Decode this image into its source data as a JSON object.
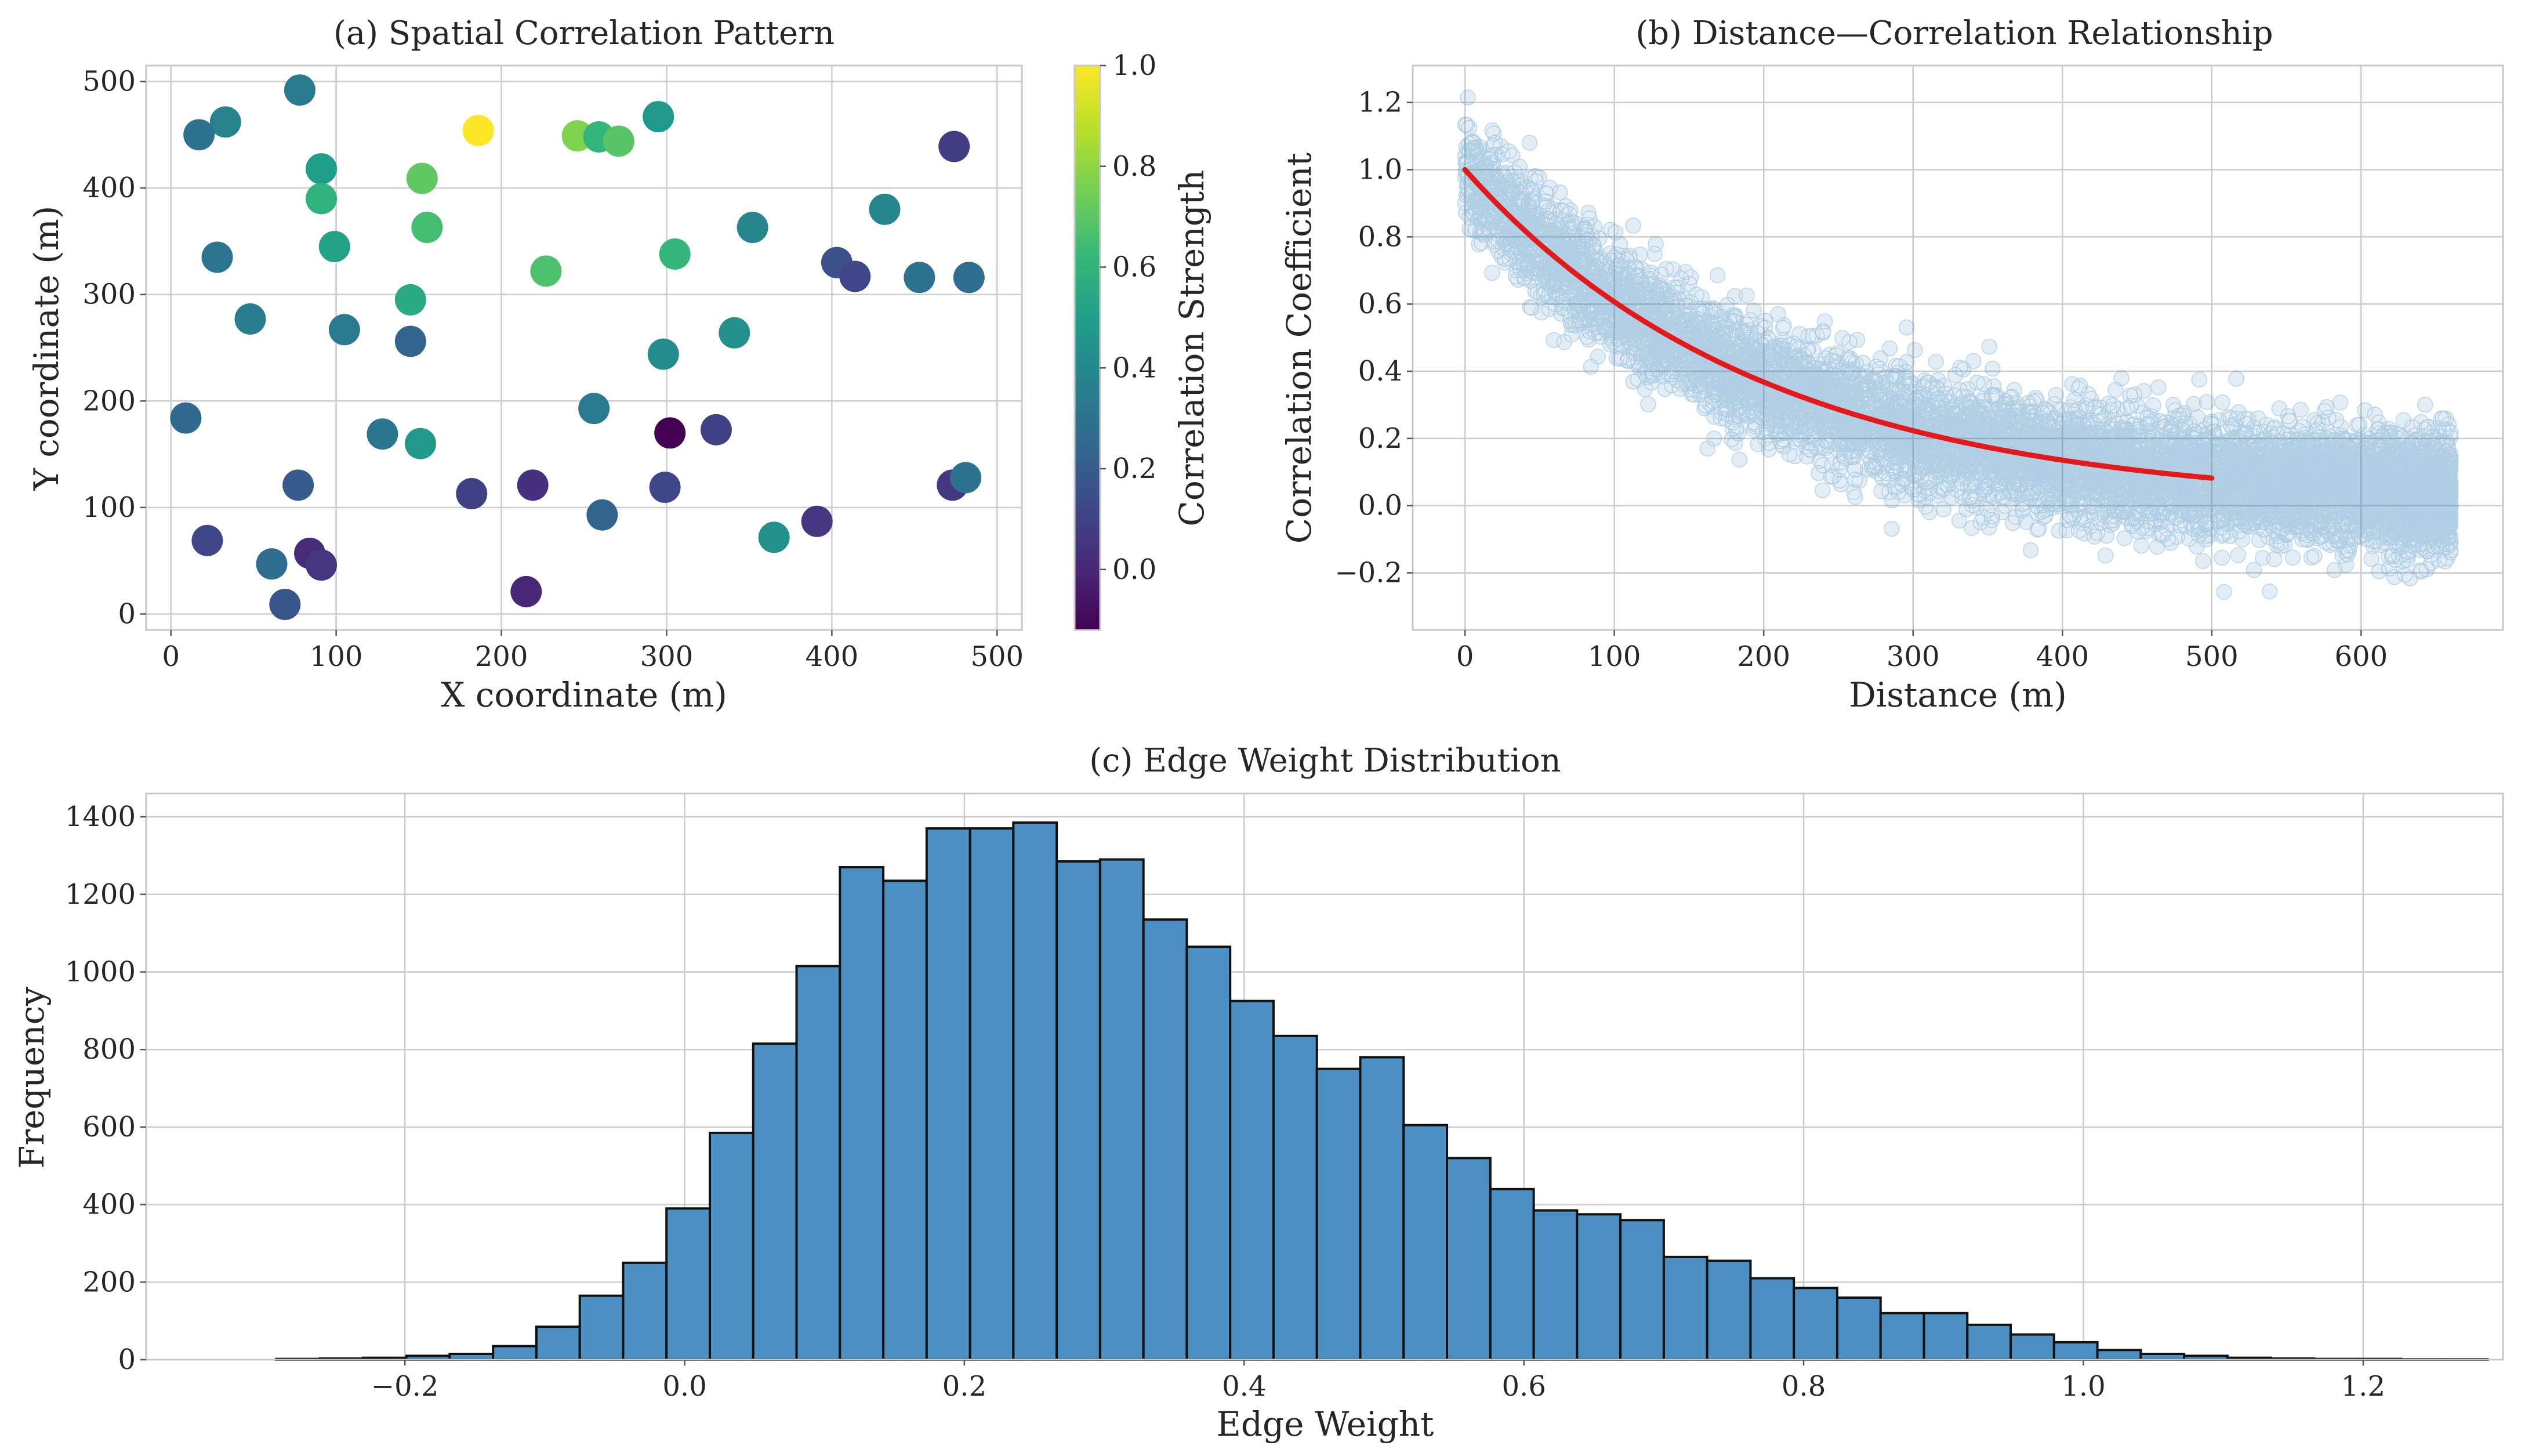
{
  "colors": {
    "accent": "#1f77b4",
    "fit_line": "#e31a1c",
    "hist_bar": "#4c8fc2",
    "hist_edge": "#111111",
    "viridis": [
      "#440154",
      "#482878",
      "#3e4989",
      "#31688e",
      "#26828e",
      "#1f9e89",
      "#35b779",
      "#6ece58",
      "#b5de2b",
      "#fde725"
    ]
  },
  "chart_data": [
    {
      "id": "a",
      "type": "scatter",
      "title": "(a) Spatial Correlation Pattern",
      "xlabel": "X coordinate (m)",
      "ylabel": "Y coordinate (m)",
      "xlim": [
        -15,
        515
      ],
      "ylim": [
        -15,
        515
      ],
      "xticks": [
        0,
        100,
        200,
        300,
        400,
        500
      ],
      "yticks": [
        0,
        100,
        200,
        300,
        400,
        500
      ],
      "grid": true,
      "colormap": "viridis",
      "colorbar": {
        "label": "Correlation Strength",
        "range": [
          -0.12,
          1.0
        ],
        "ticks": [
          0.0,
          0.2,
          0.4,
          0.6,
          0.8,
          1.0
        ],
        "tick_labels": [
          "0.0",
          "0.2",
          "0.4",
          "0.6",
          "0.8",
          "1.0"
        ]
      },
      "points": [
        {
          "x": 78,
          "y": 492,
          "c": 0.34
        },
        {
          "x": 33,
          "y": 462,
          "c": 0.38
        },
        {
          "x": 17,
          "y": 450,
          "c": 0.3
        },
        {
          "x": 186,
          "y": 454,
          "c": 1.0
        },
        {
          "x": 246,
          "y": 449,
          "c": 0.78
        },
        {
          "x": 259,
          "y": 448,
          "c": 0.62
        },
        {
          "x": 271,
          "y": 444,
          "c": 0.7
        },
        {
          "x": 295,
          "y": 467,
          "c": 0.48
        },
        {
          "x": 474,
          "y": 439,
          "c": 0.08
        },
        {
          "x": 91,
          "y": 418,
          "c": 0.5
        },
        {
          "x": 91,
          "y": 390,
          "c": 0.6
        },
        {
          "x": 152,
          "y": 409,
          "c": 0.72
        },
        {
          "x": 432,
          "y": 380,
          "c": 0.4
        },
        {
          "x": 99,
          "y": 345,
          "c": 0.52
        },
        {
          "x": 155,
          "y": 363,
          "c": 0.66
        },
        {
          "x": 352,
          "y": 363,
          "c": 0.4
        },
        {
          "x": 28,
          "y": 335,
          "c": 0.32
        },
        {
          "x": 227,
          "y": 322,
          "c": 0.68
        },
        {
          "x": 305,
          "y": 338,
          "c": 0.62
        },
        {
          "x": 403,
          "y": 330,
          "c": 0.16
        },
        {
          "x": 414,
          "y": 317,
          "c": 0.12
        },
        {
          "x": 453,
          "y": 316,
          "c": 0.3
        },
        {
          "x": 483,
          "y": 316,
          "c": 0.28
        },
        {
          "x": 48,
          "y": 277,
          "c": 0.36
        },
        {
          "x": 145,
          "y": 295,
          "c": 0.56
        },
        {
          "x": 105,
          "y": 267,
          "c": 0.34
        },
        {
          "x": 145,
          "y": 256,
          "c": 0.24
        },
        {
          "x": 298,
          "y": 244,
          "c": 0.42
        },
        {
          "x": 341,
          "y": 264,
          "c": 0.44
        },
        {
          "x": 9,
          "y": 184,
          "c": 0.26
        },
        {
          "x": 256,
          "y": 193,
          "c": 0.34
        },
        {
          "x": 128,
          "y": 169,
          "c": 0.32
        },
        {
          "x": 151,
          "y": 160,
          "c": 0.48
        },
        {
          "x": 302,
          "y": 170,
          "c": -0.12
        },
        {
          "x": 330,
          "y": 173,
          "c": 0.1
        },
        {
          "x": 77,
          "y": 121,
          "c": 0.2
        },
        {
          "x": 182,
          "y": 113,
          "c": 0.1
        },
        {
          "x": 219,
          "y": 121,
          "c": 0.04
        },
        {
          "x": 261,
          "y": 93,
          "c": 0.24
        },
        {
          "x": 299,
          "y": 119,
          "c": 0.12
        },
        {
          "x": 365,
          "y": 72,
          "c": 0.44
        },
        {
          "x": 391,
          "y": 87,
          "c": 0.06
        },
        {
          "x": 473,
          "y": 121,
          "c": 0.06
        },
        {
          "x": 481,
          "y": 128,
          "c": 0.3
        },
        {
          "x": 22,
          "y": 69,
          "c": 0.12
        },
        {
          "x": 61,
          "y": 47,
          "c": 0.28
        },
        {
          "x": 84,
          "y": 57,
          "c": 0.02
        },
        {
          "x": 91,
          "y": 46,
          "c": 0.06
        },
        {
          "x": 69,
          "y": 9,
          "c": 0.18
        },
        {
          "x": 215,
          "y": 21,
          "c": 0.0
        }
      ]
    },
    {
      "id": "b",
      "type": "scatter",
      "title": "(b) Distance—Correlation Relationship",
      "xlabel": "Distance (m)",
      "ylabel": "Correlation Coefficient",
      "xlim": [
        -35,
        695
      ],
      "ylim": [
        -0.37,
        1.31
      ],
      "xticks": [
        0,
        100,
        200,
        300,
        400,
        500,
        600
      ],
      "yticks": [
        -0.2,
        0.0,
        0.2,
        0.4,
        0.6,
        0.8,
        1.0,
        1.2
      ],
      "ytick_labels": [
        "−0.2",
        "0.0",
        "0.2",
        "0.4",
        "0.6",
        "0.8",
        "1.0",
        "1.2"
      ],
      "grid": true,
      "scatter_cloud": {
        "n_points": 22000,
        "x_range": [
          0,
          660
        ],
        "model": "exp(-d/200)",
        "noise_sd": 0.08,
        "alpha": 0.15
      },
      "fit_line": {
        "model": "exp(-d/200)",
        "x": [
          0,
          50,
          100,
          150,
          200,
          250,
          300,
          350,
          400,
          450,
          500
        ],
        "y": [
          1.0,
          0.779,
          0.607,
          0.472,
          0.368,
          0.287,
          0.223,
          0.174,
          0.135,
          0.105,
          0.082
        ]
      }
    },
    {
      "id": "c",
      "type": "bar",
      "title": "(c) Edge Weight Distribution",
      "xlabel": "Edge Weight",
      "ylabel": "Frequency",
      "xlim": [
        -0.385,
        1.3
      ],
      "ylim": [
        0,
        1460
      ],
      "xticks": [
        -0.2,
        0.0,
        0.2,
        0.4,
        0.6,
        0.8,
        1.0,
        1.2
      ],
      "xtick_labels": [
        "−0.2",
        "0.0",
        "0.2",
        "0.4",
        "0.6",
        "0.8",
        "1.0",
        "1.2"
      ],
      "yticks": [
        0,
        200,
        400,
        600,
        800,
        1000,
        1200,
        1400
      ],
      "grid": true,
      "bin_start": -0.292,
      "bin_width": 0.031,
      "counts": [
        2,
        3,
        5,
        10,
        15,
        35,
        85,
        165,
        250,
        390,
        585,
        815,
        1015,
        1270,
        1235,
        1370,
        1370,
        1385,
        1285,
        1290,
        1135,
        1065,
        925,
        835,
        750,
        780,
        605,
        520,
        440,
        385,
        375,
        360,
        265,
        255,
        210,
        185,
        160,
        120,
        120,
        90,
        65,
        45,
        25,
        15,
        10,
        5,
        3,
        2,
        2,
        1,
        1
      ]
    }
  ]
}
